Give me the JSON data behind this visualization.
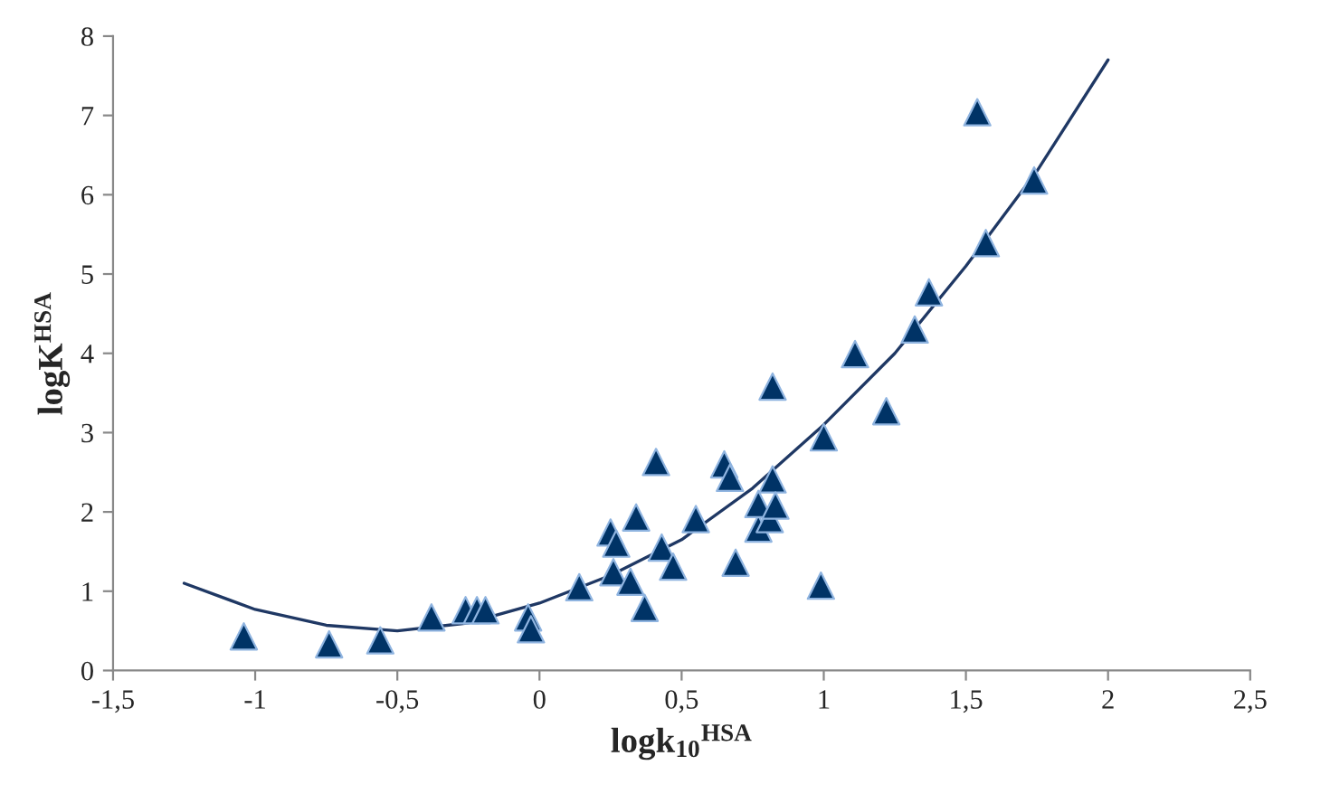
{
  "chart_data": {
    "type": "scatter",
    "xlabel": "logk$_{10}$$^{HSA}$",
    "ylabel": "logK$^{HSA}$",
    "xlim": [
      -1.5,
      2.5
    ],
    "ylim": [
      0,
      8
    ],
    "xticks": [
      {
        "value": -1.5,
        "label": "-1,5"
      },
      -1,
      {
        "value": -0.5,
        "label": "-0,5"
      },
      0,
      {
        "value": 0.5,
        "label": "0,5"
      },
      1,
      {
        "value": 1.5,
        "label": "1,5"
      },
      2,
      {
        "value": 2.5,
        "label": "2,5"
      }
    ],
    "yticks": [
      0,
      1,
      2,
      3,
      4,
      5,
      6,
      7,
      8
    ],
    "grid": false,
    "legend": false,
    "series": [
      {
        "marker": "triangle",
        "color": "#003366",
        "x": [
          -1.04,
          -0.74,
          -0.56,
          -0.38,
          -0.26,
          -0.22,
          -0.19,
          -0.04,
          -0.03,
          0.14,
          0.25,
          0.27,
          0.34,
          0.26,
          0.32,
          0.37,
          0.41,
          0.43,
          0.47,
          0.55,
          0.65,
          0.67,
          0.69,
          0.77,
          0.77,
          0.81,
          0.82,
          0.83,
          0.82,
          1.0,
          0.99,
          1.11,
          1.22,
          1.32,
          1.37,
          1.54,
          1.57,
          1.74
        ],
        "values": [
          0.43,
          0.33,
          0.38,
          0.67,
          0.76,
          0.76,
          0.76,
          0.67,
          0.52,
          1.05,
          1.74,
          1.6,
          1.93,
          1.24,
          1.12,
          0.79,
          2.63,
          1.55,
          1.31,
          1.91,
          2.6,
          2.43,
          1.36,
          1.79,
          2.1,
          1.91,
          2.41,
          2.08,
          3.58,
          2.94,
          1.07,
          3.99,
          3.27,
          4.3,
          4.77,
          7.04,
          5.39,
          6.18
        ]
      },
      {
        "type": "line",
        "marker": "none",
        "line_style": "solid",
        "color": "#1f3864",
        "x": [
          -1.25,
          -1,
          -0.75,
          -0.5,
          -0.25,
          0,
          0.25,
          0.5,
          0.75,
          1,
          1.25,
          1.5,
          1.75,
          2
        ],
        "values": [
          1.1,
          0.77,
          0.57,
          0.5,
          0.6,
          0.85,
          1.2,
          1.65,
          2.3,
          3.1,
          4.0,
          5.1,
          6.3,
          7.7
        ]
      }
    ]
  }
}
